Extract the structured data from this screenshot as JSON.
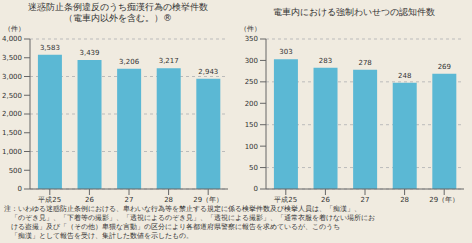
{
  "chart_data": [
    {
      "type": "bar",
      "title": "迷惑防止条例違反のうち痴漢行為の検挙件数",
      "subtitle": "（電車内以外を含む。）®",
      "ylabel": "（件）",
      "categories": [
        "平成25",
        "26",
        "27",
        "28",
        "29（年）"
      ],
      "values": [
        3583,
        3439,
        3206,
        3217,
        2943
      ],
      "value_labels": [
        "3,583",
        "3,439",
        "3,206",
        "3,217",
        "2,943"
      ],
      "color": "#5BB8D4",
      "ylim": [
        0,
        4000
      ],
      "yticks": [
        0,
        500,
        {
          "value": 1000,
          "label": "1,000"
        },
        {
          "value": 1500,
          "label": "1,500"
        },
        {
          "value": 2000,
          "label": "2,000"
        },
        {
          "value": 2500,
          "label": "2,500"
        },
        {
          "value": 3000,
          "label": "3,000"
        },
        {
          "value": 3500,
          "label": "3,500"
        },
        {
          "value": 4000,
          "label": "4,000"
        }
      ],
      "grid": true,
      "data_labels": true,
      "annotations": [
        "注：いわゆる迷惑防止条例における、卑わいな行為等を禁止する規定に係る検挙件数及び検挙人員は、「痴漢」、",
        "　「のぞき見」、「下着等の撮影」、「透視によるのぞき見」、「透視による撮影」、「通常衣服を着けない場所にお",
        "　ける盗撮」及び「（その他）卑猥な言動」の区分により各都道府県警察に報告を求めているが、このうち",
        "　「痴漢」として報告を受け、集計した数値を示したもの。"
      ]
    },
    {
      "type": "bar",
      "title": "電車内における強制わいせつの認知件数",
      "ylabel": "（件）",
      "categories": [
        "平成25",
        "26",
        "27",
        "28",
        "29（年）"
      ],
      "values": [
        303,
        283,
        278,
        248,
        269
      ],
      "color": "#5BB8D4",
      "ylim": [
        0,
        350
      ],
      "yticks": [
        0,
        50,
        100,
        150,
        200,
        250,
        300,
        350
      ],
      "grid": true,
      "data_labels": true
    }
  ]
}
